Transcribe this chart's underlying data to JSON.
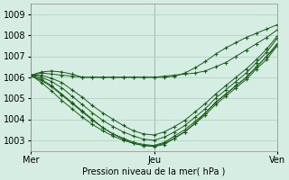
{
  "title": "Pression niveau de la mer( hPa )",
  "background_color": "#d5ede2",
  "grid_color": "#aacfbc",
  "line_color": "#1a5c1a",
  "xlim": [
    0,
    48
  ],
  "ylim": [
    1002.5,
    1009.5
  ],
  "yticks": [
    1003,
    1004,
    1005,
    1006,
    1007,
    1008,
    1009
  ],
  "xtick_positions": [
    0,
    24,
    48
  ],
  "xtick_labels": [
    "Mer",
    "Jeu",
    "Ven"
  ],
  "vlines": [
    0,
    24,
    48
  ],
  "series": [
    {
      "x": [
        0,
        2,
        4,
        6,
        8,
        10,
        12,
        14,
        16,
        18,
        20,
        22,
        24,
        26,
        28,
        30,
        32,
        34,
        36,
        38,
        40,
        42,
        44,
        46,
        48
      ],
      "y": [
        1006.1,
        1006.2,
        1006.15,
        1006.1,
        1006.05,
        1006.0,
        1006.0,
        1006.0,
        1006.0,
        1006.0,
        1006.0,
        1006.0,
        1006.0,
        1006.05,
        1006.1,
        1006.15,
        1006.2,
        1006.3,
        1006.5,
        1006.7,
        1007.0,
        1007.3,
        1007.6,
        1007.9,
        1008.25
      ]
    },
    {
      "x": [
        0,
        2,
        4,
        6,
        8,
        10,
        12,
        14,
        16,
        18,
        20,
        22,
        24,
        26,
        28,
        30,
        32,
        34,
        36,
        38,
        40,
        42,
        44,
        46,
        48
      ],
      "y": [
        1006.1,
        1005.9,
        1005.6,
        1005.2,
        1004.8,
        1004.4,
        1004.0,
        1003.6,
        1003.3,
        1003.1,
        1002.9,
        1002.8,
        1002.75,
        1002.9,
        1003.2,
        1003.5,
        1003.9,
        1004.3,
        1004.8,
        1005.2,
        1005.6,
        1006.0,
        1006.5,
        1007.0,
        1007.6
      ]
    },
    {
      "x": [
        0,
        2,
        4,
        6,
        8,
        10,
        12,
        14,
        16,
        18,
        20,
        22,
        24,
        26,
        28,
        30,
        32,
        34,
        36,
        38,
        40,
        42,
        44,
        46,
        48
      ],
      "y": [
        1006.05,
        1005.85,
        1005.55,
        1005.15,
        1004.75,
        1004.35,
        1003.95,
        1003.6,
        1003.3,
        1003.05,
        1002.85,
        1002.75,
        1002.7,
        1002.8,
        1003.1,
        1003.4,
        1003.8,
        1004.2,
        1004.7,
        1005.1,
        1005.5,
        1005.9,
        1006.4,
        1006.85,
        1007.5
      ]
    },
    {
      "x": [
        0,
        2,
        4,
        6,
        8,
        10,
        12,
        14,
        16,
        18,
        20,
        22,
        24,
        26,
        28,
        30,
        32,
        34,
        36,
        38,
        40,
        42,
        44,
        46,
        48
      ],
      "y": [
        1006.1,
        1005.75,
        1005.35,
        1004.9,
        1004.5,
        1004.1,
        1003.75,
        1003.45,
        1003.2,
        1003.0,
        1002.85,
        1002.75,
        1002.72,
        1002.85,
        1003.1,
        1003.4,
        1003.8,
        1004.3,
        1004.8,
        1005.2,
        1005.6,
        1006.0,
        1006.5,
        1007.0,
        1007.5
      ]
    },
    {
      "x": [
        0,
        2,
        4,
        6,
        8,
        10,
        12,
        14,
        16,
        18,
        20,
        22,
        24,
        26,
        28,
        30,
        32,
        34,
        36,
        38,
        40,
        42,
        44,
        46,
        48
      ],
      "y": [
        1006.1,
        1006.0,
        1005.8,
        1005.5,
        1005.1,
        1004.7,
        1004.3,
        1003.95,
        1003.65,
        1003.4,
        1003.2,
        1003.05,
        1003.0,
        1003.15,
        1003.4,
        1003.7,
        1004.1,
        1004.5,
        1005.0,
        1005.4,
        1005.8,
        1006.2,
        1006.7,
        1007.2,
        1007.85
      ]
    },
    {
      "x": [
        0,
        2,
        4,
        6,
        8,
        10,
        12,
        14,
        16,
        18,
        20,
        22,
        24,
        26,
        28,
        30,
        32,
        34,
        36,
        38,
        40,
        42,
        44,
        46,
        48
      ],
      "y": [
        1006.1,
        1006.1,
        1005.95,
        1005.75,
        1005.4,
        1005.05,
        1004.65,
        1004.3,
        1004.0,
        1003.7,
        1003.45,
        1003.3,
        1003.25,
        1003.4,
        1003.65,
        1003.95,
        1004.35,
        1004.75,
        1005.2,
        1005.6,
        1006.0,
        1006.4,
        1006.85,
        1007.35,
        1007.95
      ]
    },
    {
      "x": [
        0,
        2,
        4,
        6,
        8,
        10,
        12,
        14,
        16,
        18,
        20,
        22,
        24,
        26,
        28,
        30,
        32,
        34,
        36,
        38,
        40,
        42,
        44,
        46,
        48
      ],
      "y": [
        1006.1,
        1006.25,
        1006.3,
        1006.25,
        1006.15,
        1006.0,
        1006.0,
        1006.0,
        1006.0,
        1006.0,
        1006.0,
        1006.0,
        1006.0,
        1006.0,
        1006.05,
        1006.2,
        1006.45,
        1006.75,
        1007.1,
        1007.4,
        1007.65,
        1007.9,
        1008.1,
        1008.3,
        1008.5
      ]
    }
  ]
}
